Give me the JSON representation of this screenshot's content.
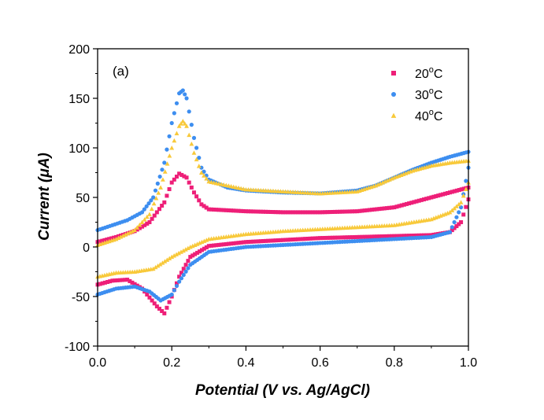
{
  "chart_data": {
    "type": "scatter",
    "title": "",
    "panel_label": "(a)",
    "xlabel": "Potential (V vs. Ag/AgCl)",
    "ylabel": "Current (μA)",
    "xlim": [
      0.0,
      1.0
    ],
    "ylim": [
      -100,
      200
    ],
    "x_ticks": [
      "0.0",
      "0.2",
      "0.4",
      "0.6",
      "0.8",
      "1.0"
    ],
    "y_ticks": [
      "-100",
      "-50",
      "0",
      "50",
      "100",
      "150",
      "200"
    ],
    "grid": false,
    "legend_position": "top-right",
    "series": [
      {
        "name": "20oC",
        "legend_main": "20",
        "legend_sup": "o",
        "legend_suffix": "C",
        "color": "#ee1f78",
        "marker": "square",
        "anodic": [
          [
            0.0,
            5
          ],
          [
            0.05,
            10
          ],
          [
            0.1,
            16
          ],
          [
            0.14,
            25
          ],
          [
            0.18,
            45
          ],
          [
            0.2,
            65
          ],
          [
            0.22,
            74
          ],
          [
            0.24,
            70
          ],
          [
            0.26,
            55
          ],
          [
            0.28,
            43
          ],
          [
            0.3,
            38
          ],
          [
            0.4,
            36
          ],
          [
            0.5,
            35
          ],
          [
            0.6,
            35
          ],
          [
            0.7,
            36
          ],
          [
            0.8,
            40
          ],
          [
            0.9,
            50
          ],
          [
            0.95,
            55
          ],
          [
            1.0,
            60
          ]
        ],
        "cathodic": [
          [
            1.0,
            48
          ],
          [
            0.98,
            25
          ],
          [
            0.95,
            15
          ],
          [
            0.9,
            12
          ],
          [
            0.8,
            11
          ],
          [
            0.7,
            10
          ],
          [
            0.6,
            9
          ],
          [
            0.5,
            7
          ],
          [
            0.4,
            5
          ],
          [
            0.3,
            1
          ],
          [
            0.25,
            -10
          ],
          [
            0.22,
            -30
          ],
          [
            0.2,
            -50
          ],
          [
            0.18,
            -67
          ],
          [
            0.16,
            -60
          ],
          [
            0.12,
            -42
          ],
          [
            0.08,
            -33
          ],
          [
            0.04,
            -34
          ],
          [
            0.0,
            -38
          ]
        ]
      },
      {
        "name": "30oC",
        "legend_main": "30",
        "legend_sup": "o",
        "legend_suffix": "C",
        "color": "#3d8ef0",
        "marker": "circle",
        "anodic": [
          [
            0.0,
            17
          ],
          [
            0.04,
            22
          ],
          [
            0.08,
            27
          ],
          [
            0.12,
            35
          ],
          [
            0.15,
            50
          ],
          [
            0.18,
            85
          ],
          [
            0.2,
            125
          ],
          [
            0.22,
            155
          ],
          [
            0.23,
            158
          ],
          [
            0.24,
            150
          ],
          [
            0.26,
            110
          ],
          [
            0.28,
            80
          ],
          [
            0.3,
            68
          ],
          [
            0.35,
            60
          ],
          [
            0.4,
            57
          ],
          [
            0.5,
            55
          ],
          [
            0.6,
            54
          ],
          [
            0.7,
            57
          ],
          [
            0.75,
            62
          ],
          [
            0.8,
            70
          ],
          [
            0.85,
            78
          ],
          [
            0.9,
            85
          ],
          [
            0.95,
            91
          ],
          [
            1.0,
            96
          ]
        ],
        "cathodic": [
          [
            1.0,
            80
          ],
          [
            0.98,
            40
          ],
          [
            0.95,
            15
          ],
          [
            0.9,
            10
          ],
          [
            0.8,
            8
          ],
          [
            0.7,
            6
          ],
          [
            0.6,
            4
          ],
          [
            0.5,
            2
          ],
          [
            0.4,
            0
          ],
          [
            0.3,
            -5
          ],
          [
            0.25,
            -18
          ],
          [
            0.22,
            -35
          ],
          [
            0.2,
            -48
          ],
          [
            0.17,
            -54
          ],
          [
            0.14,
            -45
          ],
          [
            0.1,
            -40
          ],
          [
            0.05,
            -42
          ],
          [
            0.0,
            -48
          ]
        ]
      },
      {
        "name": "40oC",
        "legend_main": "40",
        "legend_sup": "o",
        "legend_suffix": "C",
        "color": "#f8c93a",
        "marker": "triangle",
        "anodic": [
          [
            0.0,
            2
          ],
          [
            0.05,
            8
          ],
          [
            0.1,
            17
          ],
          [
            0.14,
            33
          ],
          [
            0.17,
            60
          ],
          [
            0.2,
            100
          ],
          [
            0.22,
            122
          ],
          [
            0.23,
            127
          ],
          [
            0.24,
            122
          ],
          [
            0.26,
            95
          ],
          [
            0.28,
            75
          ],
          [
            0.3,
            66
          ],
          [
            0.4,
            58
          ],
          [
            0.5,
            56
          ],
          [
            0.6,
            54
          ],
          [
            0.7,
            56
          ],
          [
            0.75,
            62
          ],
          [
            0.8,
            70
          ],
          [
            0.85,
            77
          ],
          [
            0.9,
            82
          ],
          [
            0.95,
            85
          ],
          [
            1.0,
            87
          ]
        ],
        "cathodic": [
          [
            1.0,
            65
          ],
          [
            0.98,
            45
          ],
          [
            0.95,
            35
          ],
          [
            0.9,
            28
          ],
          [
            0.8,
            22
          ],
          [
            0.7,
            20
          ],
          [
            0.6,
            18
          ],
          [
            0.5,
            16
          ],
          [
            0.4,
            13
          ],
          [
            0.3,
            8
          ],
          [
            0.25,
            0
          ],
          [
            0.2,
            -10
          ],
          [
            0.15,
            -22
          ],
          [
            0.1,
            -25
          ],
          [
            0.05,
            -26
          ],
          [
            0.0,
            -30
          ]
        ]
      }
    ]
  }
}
